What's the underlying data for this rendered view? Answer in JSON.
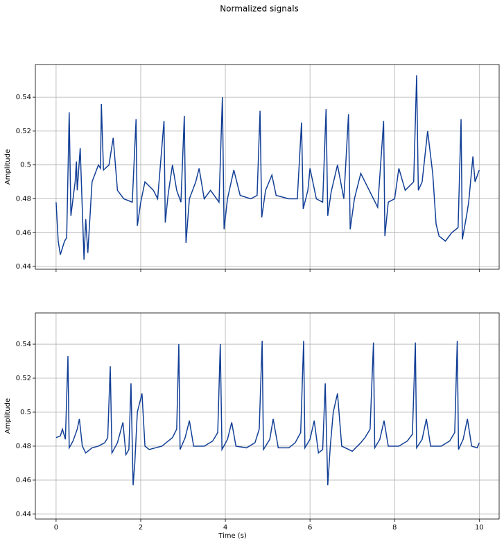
{
  "title": "Normalized signals",
  "chart_data": [
    {
      "type": "line",
      "ylabel": "Amplitude",
      "grid": true,
      "show_xticklabels": false,
      "xlim": [
        -0.49,
        10.47
      ],
      "ylim": [
        0.4384,
        0.5593
      ],
      "xticks": [
        0,
        2,
        4,
        6,
        8,
        10
      ],
      "yticks": [
        0.44,
        0.46,
        0.48,
        0.5,
        0.52,
        0.54
      ],
      "x": [
        0,
        0.05,
        0.1,
        0.2,
        0.25,
        0.31,
        0.35,
        0.45,
        0.48,
        0.5,
        0.57,
        0.66,
        0.7,
        0.75,
        0.85,
        1.0,
        1.05,
        1.07,
        1.12,
        1.25,
        1.35,
        1.45,
        1.6,
        1.8,
        1.89,
        1.92,
        2.0,
        2.1,
        2.3,
        2.4,
        2.55,
        2.58,
        2.65,
        2.75,
        2.85,
        2.95,
        3.03,
        3.07,
        3.15,
        3.3,
        3.38,
        3.5,
        3.65,
        3.85,
        3.93,
        3.97,
        4.05,
        4.2,
        4.35,
        4.6,
        4.75,
        4.82,
        4.86,
        4.95,
        5.1,
        5.2,
        5.5,
        5.7,
        5.8,
        5.84,
        5.95,
        6.0,
        6.15,
        6.3,
        6.38,
        6.42,
        6.5,
        6.65,
        6.8,
        6.91,
        6.95,
        7.05,
        7.2,
        7.4,
        7.6,
        7.74,
        7.77,
        7.85,
        8.0,
        8.1,
        8.25,
        8.45,
        8.52,
        8.56,
        8.65,
        8.78,
        8.9,
        8.98,
        9.05,
        9.2,
        9.35,
        9.5,
        9.57,
        9.6,
        9.7,
        9.75,
        9.85,
        9.9,
        10.0
      ],
      "series": [
        {
          "color": "#123f96",
          "values": [
            0.478,
            0.455,
            0.447,
            0.455,
            0.457,
            0.531,
            0.47,
            0.49,
            0.502,
            0.485,
            0.51,
            0.444,
            0.468,
            0.448,
            0.49,
            0.5,
            0.498,
            0.536,
            0.497,
            0.5,
            0.516,
            0.485,
            0.48,
            0.478,
            0.527,
            0.464,
            0.478,
            0.49,
            0.485,
            0.48,
            0.526,
            0.466,
            0.483,
            0.5,
            0.485,
            0.478,
            0.529,
            0.454,
            0.48,
            0.49,
            0.498,
            0.48,
            0.485,
            0.478,
            0.54,
            0.462,
            0.48,
            0.497,
            0.482,
            0.48,
            0.482,
            0.532,
            0.469,
            0.485,
            0.494,
            0.482,
            0.48,
            0.48,
            0.525,
            0.474,
            0.485,
            0.498,
            0.48,
            0.478,
            0.533,
            0.47,
            0.484,
            0.5,
            0.48,
            0.53,
            0.462,
            0.48,
            0.495,
            0.485,
            0.475,
            0.526,
            0.458,
            0.478,
            0.48,
            0.498,
            0.485,
            0.49,
            0.553,
            0.485,
            0.49,
            0.52,
            0.495,
            0.465,
            0.458,
            0.455,
            0.46,
            0.463,
            0.527,
            0.456,
            0.47,
            0.478,
            0.505,
            0.49,
            0.497
          ]
        }
      ]
    },
    {
      "type": "line",
      "ylabel": "Amplitude",
      "xlabel": "Time (s)",
      "grid": true,
      "show_xticklabels": true,
      "xlim": [
        -0.49,
        10.47
      ],
      "ylim": [
        0.4371,
        0.5584
      ],
      "xticks": [
        0,
        2,
        4,
        6,
        8,
        10
      ],
      "yticks": [
        0.44,
        0.46,
        0.48,
        0.5,
        0.52,
        0.54
      ],
      "x": [
        0,
        0.1,
        0.15,
        0.22,
        0.28,
        0.31,
        0.4,
        0.5,
        0.55,
        0.62,
        0.7,
        0.85,
        1.0,
        1.15,
        1.22,
        1.28,
        1.32,
        1.45,
        1.58,
        1.65,
        1.72,
        1.77,
        1.82,
        1.86,
        1.92,
        2.03,
        2.1,
        2.2,
        2.5,
        2.6,
        2.75,
        2.85,
        2.9,
        2.93,
        3.05,
        3.15,
        3.25,
        3.5,
        3.7,
        3.82,
        3.88,
        3.92,
        4.05,
        4.15,
        4.25,
        4.5,
        4.7,
        4.8,
        4.87,
        4.9,
        5.05,
        5.13,
        5.25,
        5.5,
        5.65,
        5.78,
        5.85,
        5.88,
        6.0,
        6.1,
        6.2,
        6.3,
        6.36,
        6.42,
        6.48,
        6.55,
        6.65,
        6.75,
        7.0,
        7.2,
        7.3,
        7.42,
        7.5,
        7.53,
        7.65,
        7.75,
        7.85,
        8.1,
        8.3,
        8.42,
        8.49,
        8.52,
        8.65,
        8.75,
        8.85,
        9.1,
        9.3,
        9.42,
        9.48,
        9.51,
        9.62,
        9.72,
        9.82,
        9.95,
        10.0
      ],
      "series": [
        {
          "color": "#123f96",
          "values": [
            0.485,
            0.486,
            0.49,
            0.484,
            0.533,
            0.479,
            0.483,
            0.49,
            0.496,
            0.48,
            0.476,
            0.479,
            0.48,
            0.482,
            0.485,
            0.527,
            0.476,
            0.482,
            0.494,
            0.475,
            0.478,
            0.517,
            0.457,
            0.47,
            0.5,
            0.511,
            0.48,
            0.478,
            0.48,
            0.482,
            0.485,
            0.49,
            0.54,
            0.478,
            0.485,
            0.495,
            0.48,
            0.48,
            0.483,
            0.488,
            0.54,
            0.478,
            0.484,
            0.494,
            0.48,
            0.479,
            0.482,
            0.49,
            0.542,
            0.478,
            0.484,
            0.496,
            0.479,
            0.479,
            0.482,
            0.488,
            0.542,
            0.479,
            0.484,
            0.495,
            0.476,
            0.478,
            0.517,
            0.457,
            0.48,
            0.5,
            0.511,
            0.48,
            0.477,
            0.482,
            0.485,
            0.49,
            0.541,
            0.479,
            0.484,
            0.495,
            0.48,
            0.48,
            0.483,
            0.487,
            0.541,
            0.479,
            0.484,
            0.496,
            0.48,
            0.48,
            0.483,
            0.488,
            0.542,
            0.478,
            0.484,
            0.496,
            0.48,
            0.479,
            0.482
          ]
        }
      ]
    }
  ]
}
